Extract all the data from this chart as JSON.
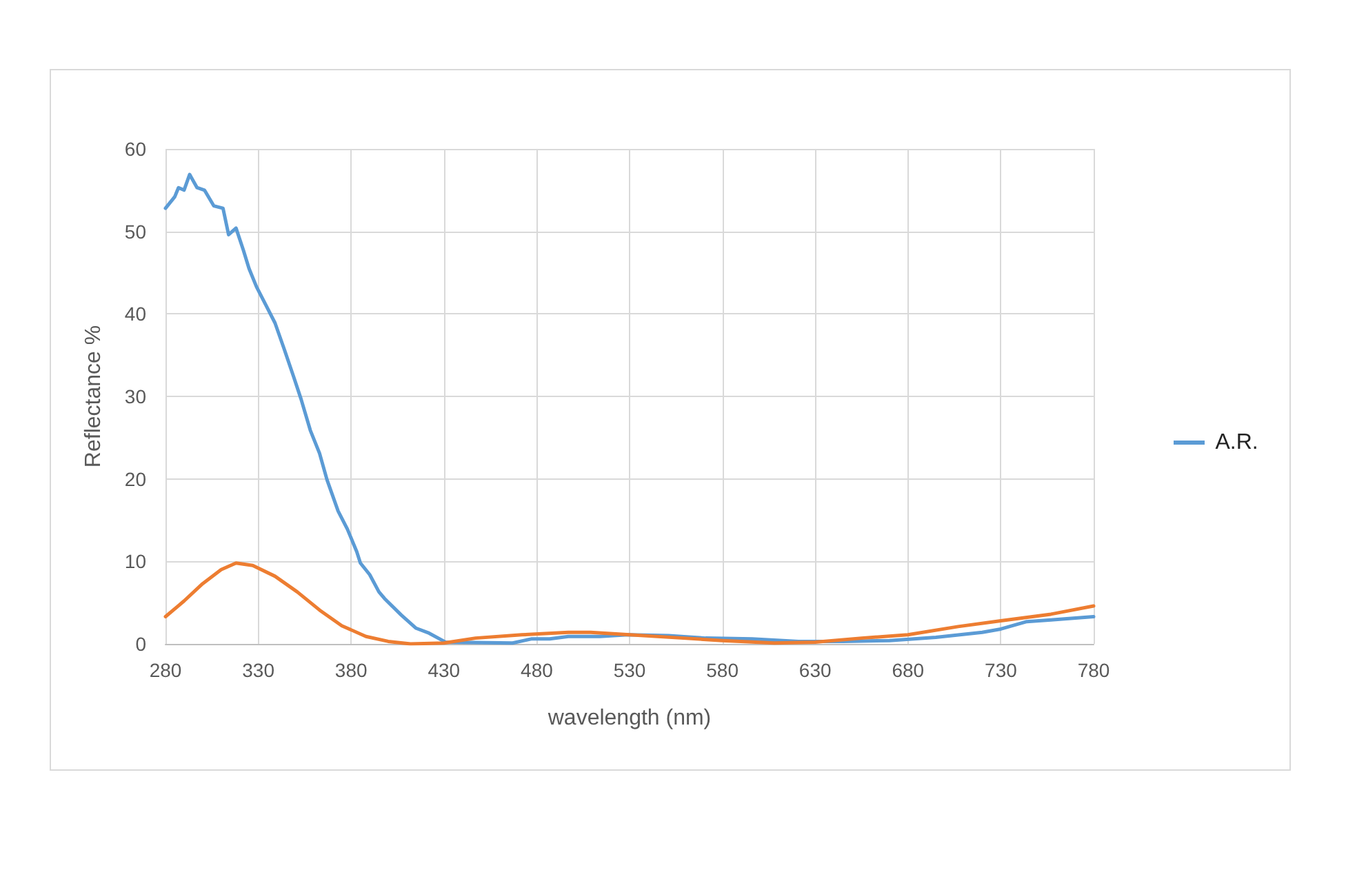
{
  "chart_data": {
    "type": "line",
    "xlabel": "wavelength (nm)",
    "ylabel": "Reflectance %",
    "xlim": [
      280,
      780
    ],
    "xticks": [
      280,
      330,
      380,
      430,
      480,
      530,
      580,
      630,
      680,
      730,
      780
    ],
    "ylim": [
      0,
      60
    ],
    "yticks": [
      0,
      10,
      20,
      30,
      40,
      50,
      60
    ],
    "grid": true,
    "legend": "right",
    "marker": "none",
    "line_style": "solid",
    "series": [
      {
        "name": "A.R.",
        "color": "#5b9bd5",
        "x": [
          280,
          285,
          287,
          290,
          293,
          297,
          301,
          306,
          311,
          314,
          318,
          322,
          325,
          329,
          334,
          339,
          344,
          349,
          353,
          358,
          363,
          367,
          373,
          378,
          383,
          385,
          390,
          395,
          398,
          407,
          415,
          422,
          431,
          467,
          477,
          487,
          497,
          514,
          529,
          551,
          571,
          596,
          621,
          645,
          670,
          695,
          720,
          730,
          744,
          757,
          780
        ],
        "values": [
          52.8,
          54.2,
          55.3,
          55,
          56.9,
          55.3,
          55,
          53.1,
          52.8,
          49.6,
          50.4,
          47.7,
          45.5,
          43.3,
          41.1,
          38.9,
          35.7,
          32.4,
          29.7,
          25.9,
          23.1,
          19.9,
          16.1,
          13.9,
          11.2,
          9.8,
          8.4,
          6.3,
          5.5,
          3.5,
          1.9,
          1.3,
          0.2,
          0.1,
          0.6,
          0.6,
          0.9,
          0.9,
          1.1,
          1.0,
          0.7,
          0.6,
          0.3,
          0.3,
          0.4,
          0.8,
          1.4,
          1.8,
          2.7,
          2.9,
          3.3
        ]
      },
      {
        "color": "#ed7d31",
        "x": [
          280,
          290,
          300,
          310,
          318,
          327,
          339,
          351,
          363,
          375,
          388,
          400,
          412,
          430,
          447,
          472,
          497,
          509,
          530,
          559,
          580,
          608,
          630,
          655,
          680,
          707,
          730,
          757,
          780
        ],
        "values": [
          3.3,
          5.2,
          7.3,
          9.0,
          9.8,
          9.5,
          8.2,
          6.3,
          4.1,
          2.2,
          0.9,
          0.3,
          0,
          0.1,
          0.7,
          1.1,
          1.4,
          1.4,
          1.1,
          0.7,
          0.4,
          0.1,
          0.2,
          0.7,
          1.1,
          2.1,
          2.8,
          3.6,
          4.6
        ]
      }
    ]
  }
}
